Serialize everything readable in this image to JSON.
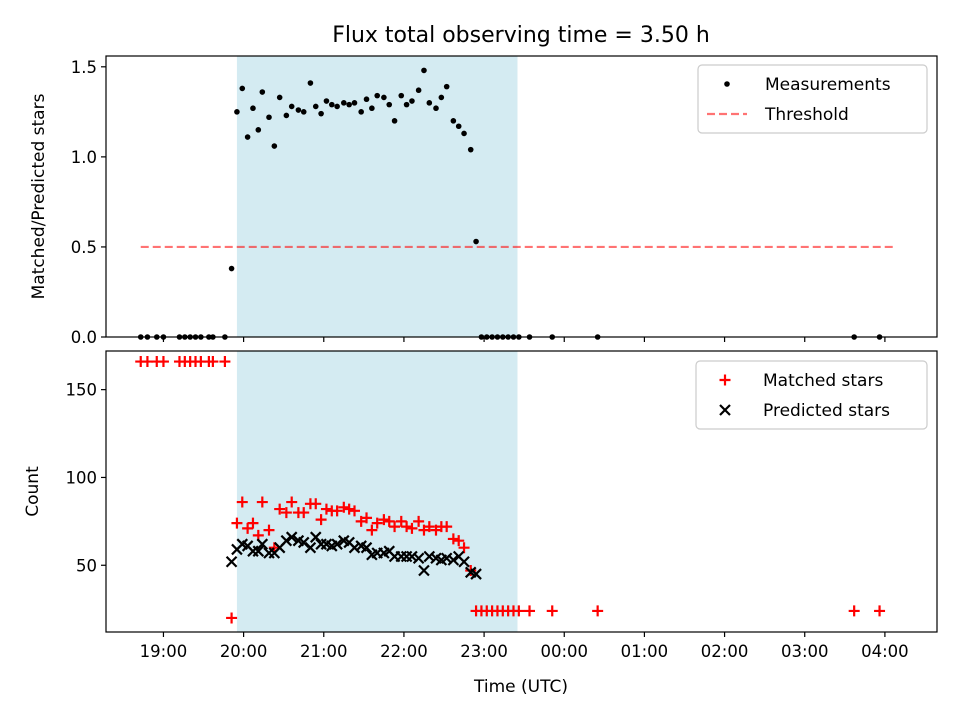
{
  "figure": {
    "title": "Flux total observing time = 3.50 h",
    "xlabel": "Time (UTC)",
    "xtick_labels": [
      "19:00",
      "20:00",
      "21:00",
      "22:00",
      "23:00",
      "00:00",
      "01:00",
      "02:00",
      "03:00",
      "04:00"
    ],
    "colors": {
      "shade": "#add8e6",
      "matched": "#ff0000",
      "predicted": "#000000",
      "threshold": "#ff0000",
      "measurement": "#000000"
    }
  },
  "chart_data": [
    {
      "type": "scatter",
      "panel": "top",
      "ylabel": "Matched/Predicted stars",
      "ylim": [
        0,
        1.56
      ],
      "yticks": [
        0.0,
        0.5,
        1.0,
        1.5
      ],
      "ytick_labels": [
        "0.0",
        "0.5",
        "1.0",
        "1.5"
      ],
      "xlim": [
        "18:17",
        "04:39"
      ],
      "shaded_interval": [
        "19:55",
        "23:25"
      ],
      "legend": {
        "placement": "top-right",
        "entries": [
          "Measurements",
          "Threshold"
        ]
      },
      "threshold": {
        "name": "Threshold",
        "y": 0.5,
        "x_range": [
          "18:43",
          "04:07"
        ],
        "style": "dashed"
      },
      "series": [
        {
          "name": "Measurements",
          "marker": "dot",
          "points": [
            [
              "18:43",
              0
            ],
            [
              "18:48",
              0
            ],
            [
              "18:55",
              0
            ],
            [
              "19:00",
              0
            ],
            [
              "19:12",
              0
            ],
            [
              "19:16",
              0
            ],
            [
              "19:20",
              0
            ],
            [
              "19:24",
              0
            ],
            [
              "19:28",
              0
            ],
            [
              "19:34",
              0
            ],
            [
              "19:37",
              0
            ],
            [
              "19:46",
              0
            ],
            [
              "19:51",
              0.38
            ],
            [
              "19:55",
              1.25
            ],
            [
              "19:59",
              1.38
            ],
            [
              "20:03",
              1.11
            ],
            [
              "20:07",
              1.27
            ],
            [
              "20:11",
              1.15
            ],
            [
              "20:14",
              1.36
            ],
            [
              "20:19",
              1.22
            ],
            [
              "20:23",
              1.06
            ],
            [
              "20:27",
              1.33
            ],
            [
              "20:32",
              1.23
            ],
            [
              "20:36",
              1.28
            ],
            [
              "20:41",
              1.26
            ],
            [
              "20:45",
              1.25
            ],
            [
              "20:50",
              1.41
            ],
            [
              "20:54",
              1.28
            ],
            [
              "20:58",
              1.24
            ],
            [
              "21:02",
              1.31
            ],
            [
              "21:06",
              1.29
            ],
            [
              "21:10",
              1.28
            ],
            [
              "21:15",
              1.3
            ],
            [
              "21:19",
              1.29
            ],
            [
              "21:23",
              1.3
            ],
            [
              "21:28",
              1.25
            ],
            [
              "21:32",
              1.32
            ],
            [
              "21:36",
              1.27
            ],
            [
              "21:40",
              1.34
            ],
            [
              "21:45",
              1.33
            ],
            [
              "21:49",
              1.29
            ],
            [
              "21:53",
              1.2
            ],
            [
              "21:58",
              1.34
            ],
            [
              "22:02",
              1.29
            ],
            [
              "22:06",
              1.31
            ],
            [
              "22:11",
              1.37
            ],
            [
              "22:15",
              1.48
            ],
            [
              "22:19",
              1.3
            ],
            [
              "22:24",
              1.27
            ],
            [
              "22:28",
              1.33
            ],
            [
              "22:32",
              1.39
            ],
            [
              "22:37",
              1.2
            ],
            [
              "22:41",
              1.17
            ],
            [
              "22:45",
              1.13
            ],
            [
              "22:50",
              1.04
            ],
            [
              "22:54",
              0.53
            ],
            [
              "22:58",
              0
            ],
            [
              "23:02",
              0
            ],
            [
              "23:06",
              0
            ],
            [
              "23:10",
              0
            ],
            [
              "23:14",
              0
            ],
            [
              "23:18",
              0
            ],
            [
              "23:22",
              0
            ],
            [
              "23:26",
              0
            ],
            [
              "23:34",
              0
            ],
            [
              "23:51",
              0
            ],
            [
              "00:25",
              0
            ],
            [
              "03:37",
              0
            ],
            [
              "03:56",
              0
            ]
          ]
        }
      ]
    },
    {
      "type": "scatter",
      "panel": "bottom",
      "ylabel": "Count",
      "ylim": [
        12,
        172
      ],
      "yticks": [
        50,
        100,
        150
      ],
      "ytick_labels": [
        "50",
        "100",
        "150"
      ],
      "xlim": [
        "18:17",
        "04:39"
      ],
      "shaded_interval": [
        "19:55",
        "23:25"
      ],
      "legend": {
        "placement": "top-right",
        "entries": [
          "Matched stars",
          "Predicted stars"
        ]
      },
      "series": [
        {
          "name": "Matched stars",
          "marker": "plus",
          "points": [
            [
              "18:43",
              166
            ],
            [
              "18:48",
              166
            ],
            [
              "18:55",
              166
            ],
            [
              "19:00",
              166
            ],
            [
              "19:12",
              166
            ],
            [
              "19:16",
              166
            ],
            [
              "19:20",
              166
            ],
            [
              "19:24",
              166
            ],
            [
              "19:28",
              166
            ],
            [
              "19:34",
              166
            ],
            [
              "19:37",
              166
            ],
            [
              "19:46",
              166
            ],
            [
              "19:51",
              20
            ],
            [
              "19:55",
              74
            ],
            [
              "19:59",
              86
            ],
            [
              "20:03",
              71
            ],
            [
              "20:07",
              74
            ],
            [
              "20:11",
              67
            ],
            [
              "20:14",
              86
            ],
            [
              "20:19",
              70
            ],
            [
              "20:23",
              60
            ],
            [
              "20:27",
              82
            ],
            [
              "20:32",
              80
            ],
            [
              "20:36",
              86
            ],
            [
              "20:41",
              80
            ],
            [
              "20:45",
              80
            ],
            [
              "20:50",
              85
            ],
            [
              "20:54",
              85
            ],
            [
              "20:58",
              76
            ],
            [
              "21:02",
              82
            ],
            [
              "21:06",
              81
            ],
            [
              "21:10",
              81
            ],
            [
              "21:15",
              83
            ],
            [
              "21:19",
              82
            ],
            [
              "21:23",
              81
            ],
            [
              "21:28",
              75
            ],
            [
              "21:32",
              77
            ],
            [
              "21:36",
              70
            ],
            [
              "21:40",
              74
            ],
            [
              "21:45",
              76
            ],
            [
              "21:49",
              75
            ],
            [
              "21:53",
              72
            ],
            [
              "21:58",
              75
            ],
            [
              "22:02",
              72
            ],
            [
              "22:06",
              71
            ],
            [
              "22:11",
              75
            ],
            [
              "22:15",
              70
            ],
            [
              "22:19",
              72
            ],
            [
              "22:24",
              70
            ],
            [
              "22:28",
              72
            ],
            [
              "22:32",
              72
            ],
            [
              "22:37",
              65
            ],
            [
              "22:41",
              64
            ],
            [
              "22:45",
              60
            ],
            [
              "22:50",
              47
            ],
            [
              "22:54",
              24
            ],
            [
              "22:58",
              24
            ],
            [
              "23:02",
              24
            ],
            [
              "23:06",
              24
            ],
            [
              "23:10",
              24
            ],
            [
              "23:14",
              24
            ],
            [
              "23:18",
              24
            ],
            [
              "23:22",
              24
            ],
            [
              "23:26",
              24
            ],
            [
              "23:34",
              24
            ],
            [
              "23:51",
              24
            ],
            [
              "00:25",
              24
            ],
            [
              "03:37",
              24
            ],
            [
              "03:56",
              24
            ]
          ]
        },
        {
          "name": "Predicted stars",
          "marker": "x",
          "points": [
            [
              "19:51",
              52
            ],
            [
              "19:55",
              59
            ],
            [
              "19:59",
              62
            ],
            [
              "20:03",
              61
            ],
            [
              "20:07",
              58
            ],
            [
              "20:11",
              58
            ],
            [
              "20:14",
              62
            ],
            [
              "20:19",
              57
            ],
            [
              "20:23",
              57
            ],
            [
              "20:27",
              60
            ],
            [
              "20:32",
              64
            ],
            [
              "20:36",
              66
            ],
            [
              "20:41",
              64
            ],
            [
              "20:45",
              63
            ],
            [
              "20:50",
              60
            ],
            [
              "20:54",
              66
            ],
            [
              "20:58",
              62
            ],
            [
              "21:02",
              62
            ],
            [
              "21:06",
              61
            ],
            [
              "21:10",
              62
            ],
            [
              "21:15",
              64
            ],
            [
              "21:19",
              63
            ],
            [
              "21:23",
              60
            ],
            [
              "21:28",
              61
            ],
            [
              "21:32",
              60
            ],
            [
              "21:36",
              56
            ],
            [
              "21:40",
              57
            ],
            [
              "21:45",
              57
            ],
            [
              "21:49",
              58
            ],
            [
              "21:53",
              55
            ],
            [
              "21:58",
              55
            ],
            [
              "22:02",
              55
            ],
            [
              "22:06",
              55
            ],
            [
              "22:11",
              54
            ],
            [
              "22:15",
              47
            ],
            [
              "22:19",
              55
            ],
            [
              "22:24",
              54
            ],
            [
              "22:28",
              53
            ],
            [
              "22:32",
              54
            ],
            [
              "22:37",
              53
            ],
            [
              "22:41",
              55
            ],
            [
              "22:45",
              52
            ],
            [
              "22:50",
              46
            ],
            [
              "22:54",
              45
            ]
          ]
        }
      ]
    }
  ]
}
